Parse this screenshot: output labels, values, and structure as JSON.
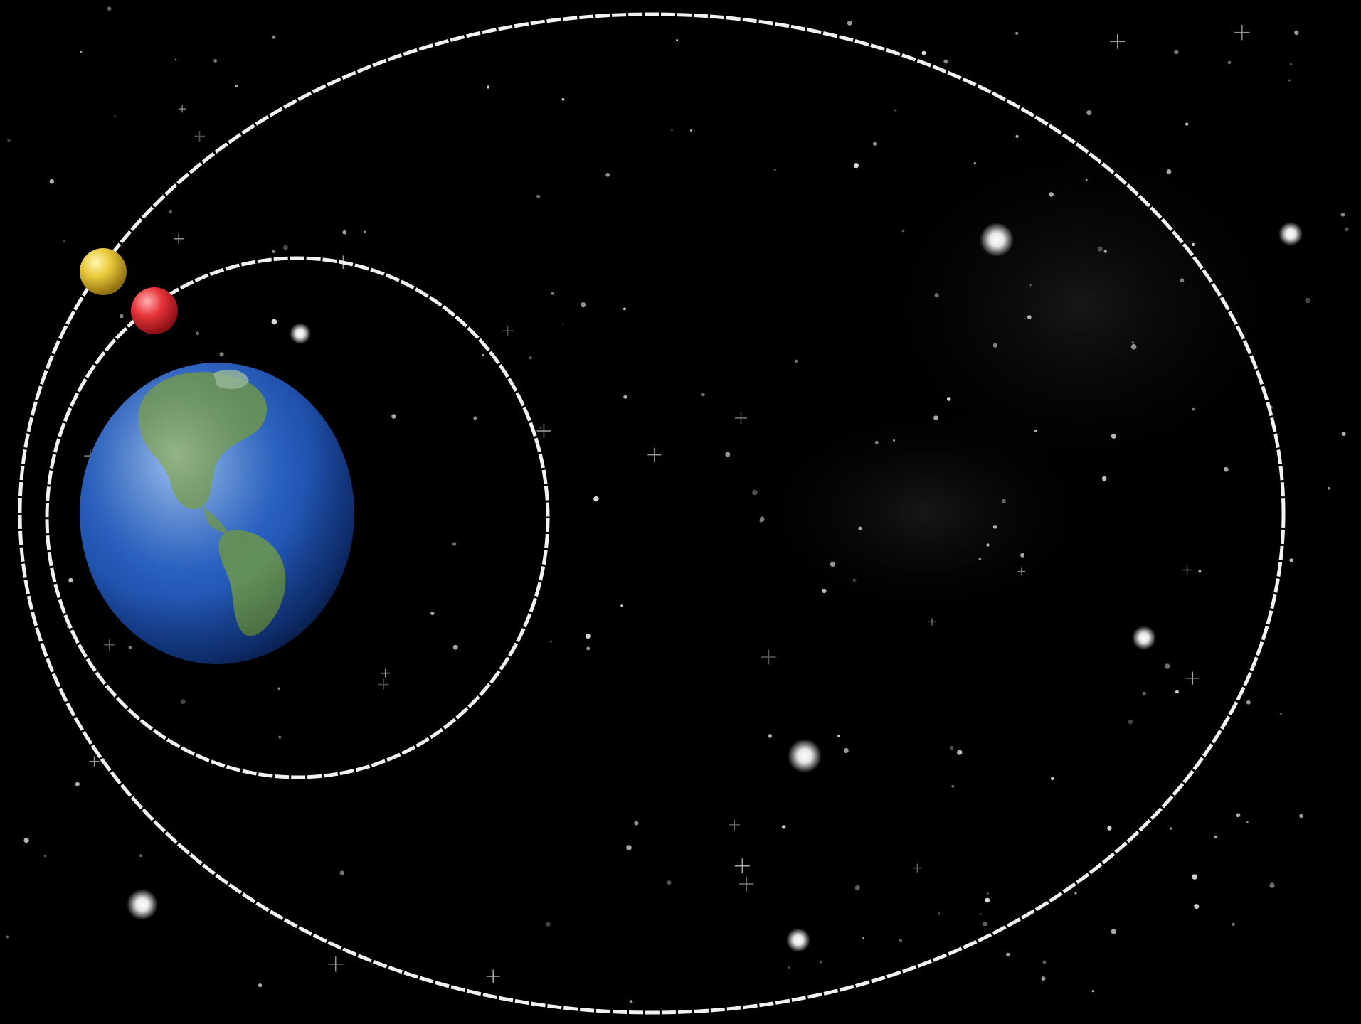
{
  "scene": {
    "background_color": "#000000",
    "orbit_color": "#f2f2f2",
    "planet": {
      "name": "earth",
      "ocean_color": "#2a64c8",
      "land_color": "#6f9a4a"
    },
    "satellites": [
      {
        "name": "satellite-yellow",
        "color": "#e8c93a"
      },
      {
        "name": "satellite-red",
        "color": "#e8353a"
      }
    ],
    "orbits": [
      {
        "name": "inner-orbit"
      },
      {
        "name": "outer-orbit"
      }
    ]
  }
}
